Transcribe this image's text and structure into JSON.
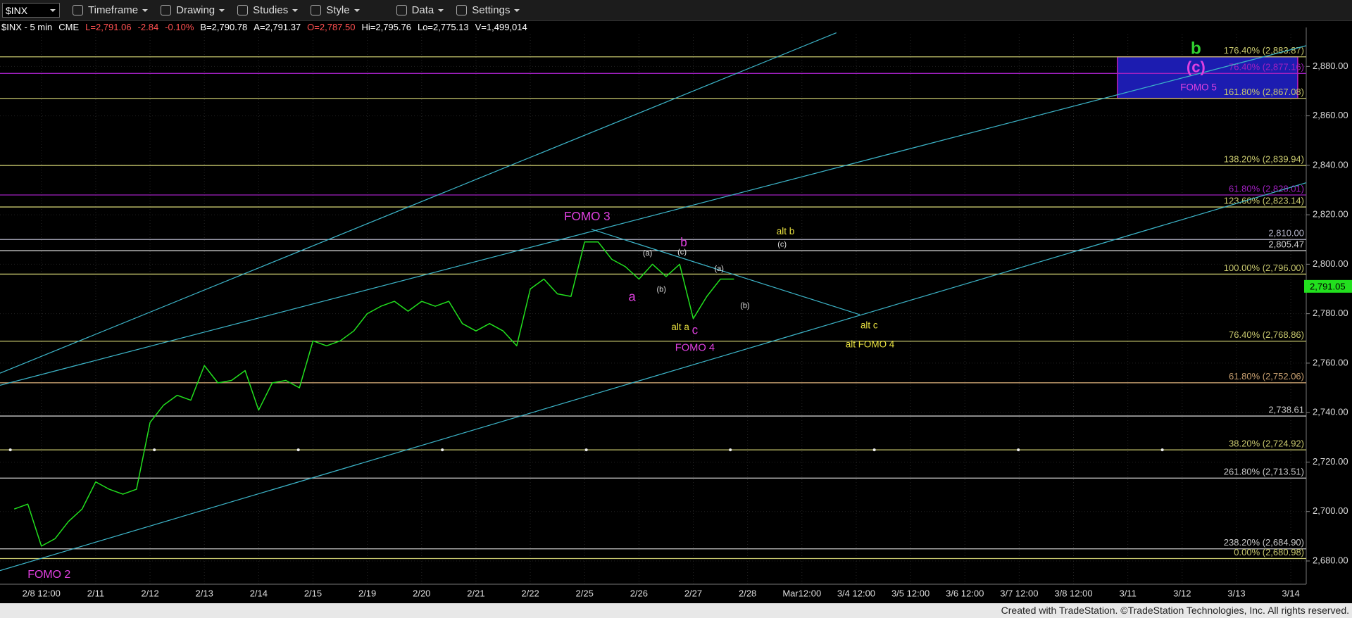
{
  "toolbar": {
    "symbol": "$INX",
    "menus": [
      "Timeframe",
      "Drawing",
      "Studies",
      "Style",
      "Data",
      "Settings"
    ]
  },
  "quote": {
    "symbol": "$INX - 5 min",
    "exchange": "CME",
    "last": "L=2,791.06",
    "change": "-2.84",
    "change_pct": "-0.10%",
    "bid": "B=2,790.78",
    "ask": "A=2,791.37",
    "open": "O=2,787.50",
    "high": "Hi=2,795.76",
    "low": "Lo=2,775.13",
    "volume": "V=1,499,014"
  },
  "chart_data": {
    "type": "line",
    "categories": [
      null,
      null,
      "2/8 12:00",
      null,
      null,
      null,
      "2/11",
      null,
      null,
      null,
      "2/12",
      null,
      null,
      null,
      "2/13",
      null,
      null,
      null,
      "2/14",
      null,
      null,
      null,
      "2/15",
      null,
      null,
      null,
      "2/19",
      null,
      null,
      null,
      "2/20",
      null,
      null,
      null,
      "2/21",
      null,
      null,
      null,
      "2/22",
      null,
      null,
      null,
      "2/25",
      null,
      null,
      null,
      "2/26",
      null,
      null,
      null,
      "2/27",
      null,
      null,
      null,
      "2/28",
      null,
      null,
      null,
      "Mar12:00",
      null,
      null,
      null,
      "3/4 12:00",
      null,
      null,
      null,
      "3/5 12:00",
      null,
      null,
      null,
      "3/6 12:00",
      null,
      null,
      null,
      "3/7 12:00",
      null,
      null,
      null,
      "3/8 12:00",
      null,
      null,
      null,
      "3/11",
      null,
      null,
      null,
      "3/12",
      null,
      null,
      null,
      "3/13",
      null,
      null,
      null,
      "3/14"
    ],
    "values": [
      2701,
      2703,
      2686,
      2689,
      2696,
      2701,
      2712,
      2709,
      2707,
      2709,
      2736,
      2743,
      2747,
      2745,
      2759,
      2752,
      2753,
      2757,
      2741,
      2752,
      2753,
      2750,
      2769,
      2767,
      2769,
      2773,
      2780,
      2783,
      2785,
      2781,
      2785,
      2783,
      2785,
      2776,
      2773,
      2776,
      2773,
      2767,
      2790,
      2794,
      2788,
      2787,
      2809,
      2809,
      2802,
      2799,
      2794,
      2800,
      2795,
      2800,
      2778,
      2787,
      2794,
      2794,
      null,
      null,
      null,
      null,
      null,
      null,
      null,
      null,
      null,
      null,
      null,
      null,
      null,
      null,
      null,
      null,
      null,
      null,
      null,
      null,
      null,
      null,
      null,
      null,
      null,
      null,
      null,
      null,
      null,
      null,
      null,
      null,
      null,
      null,
      null,
      null,
      null,
      null,
      null,
      null,
      null
    ],
    "color": "#22e01e",
    "ylim": [
      2670.6,
      2892.9
    ],
    "yticks": [
      {
        "value": 2680,
        "label": "2,680.00"
      },
      {
        "value": 2700,
        "label": "2,700.00"
      },
      {
        "value": 2720,
        "label": "2,720.00"
      },
      {
        "value": 2740,
        "label": "2,740.00"
      },
      {
        "value": 2760,
        "label": "2,760.00"
      },
      {
        "value": 2780,
        "label": "2,780.00"
      },
      {
        "value": 2800,
        "label": "2,800.00"
      },
      {
        "value": 2820,
        "label": "2,820.00"
      },
      {
        "value": 2840,
        "label": "2,840.00"
      },
      {
        "value": 2860,
        "label": "2,860.00"
      },
      {
        "value": 2880,
        "label": "2,880.00"
      }
    ],
    "levels": [
      {
        "value": 2883.87,
        "label": "176.40% (2,883.87)",
        "color": "#c8c86e"
      },
      {
        "value": 2877.16,
        "label": "76.40% (2,877.16)",
        "color": "#a020c0"
      },
      {
        "value": 2867.08,
        "label": "161.80% (2,867.08)",
        "color": "#c8c86e"
      },
      {
        "value": 2839.94,
        "label": "138.20% (2,839.94)",
        "color": "#c8c86e"
      },
      {
        "value": 2828.01,
        "label": "61.80% (2,828.01)",
        "color": "#a020c0"
      },
      {
        "value": 2823.14,
        "label": "123.60% (2,823.14)",
        "color": "#c8c86e"
      },
      {
        "value": 2810.0,
        "label": "2,810.00",
        "color": "#b4b4c8"
      },
      {
        "value": 2805.47,
        "label": "2,805.47",
        "color": "#d0d0d0"
      },
      {
        "value": 2796.0,
        "label": "100.00% (2,796.00)",
        "color": "#c8c86e"
      },
      {
        "value": 2768.86,
        "label": "76.40% (2,768.86)",
        "color": "#c8c86e"
      },
      {
        "value": 2752.06,
        "label": "61.80% (2,752.06)",
        "color": "#c8a070"
      },
      {
        "value": 2738.61,
        "label": "2,738.61",
        "color": "#c8c8c8"
      },
      {
        "value": 2724.92,
        "label": "38.20% (2,724.92)",
        "color": "#c8c86e"
      },
      {
        "value": 2713.51,
        "label": "261.80% (2,713.51)",
        "color": "#c8c8c8"
      },
      {
        "value": 2684.9,
        "label": "238.20% (2,684.90)",
        "color": "#c8c8c8"
      },
      {
        "value": 2680.98,
        "label": "0.00% (2,680.98)",
        "color": "#c8c86e"
      }
    ],
    "annotations": [
      {
        "text": "FOMO 2",
        "color": "#e040e0"
      },
      {
        "text": "FOMO 3",
        "color": "#e040e0"
      },
      {
        "text": "a",
        "color": "#e040e0"
      },
      {
        "text": "b",
        "color": "#e040e0"
      },
      {
        "text": "c",
        "color": "#e040e0"
      },
      {
        "text": "FOMO 4",
        "color": "#e040e0"
      },
      {
        "text": "(a)",
        "color": "#e0e0e0"
      },
      {
        "text": "(b)",
        "color": "#e0e0e0"
      },
      {
        "text": "(c)",
        "color": "#e0e0e0"
      },
      {
        "text": "(a)",
        "color": "#e0e0e0"
      },
      {
        "text": "(b)",
        "color": "#e0e0e0"
      },
      {
        "text": "(c)",
        "color": "#e0e0e0"
      },
      {
        "text": "alt b",
        "color": "#e8e040"
      },
      {
        "text": "alt a",
        "color": "#e8e040"
      },
      {
        "text": "alt c",
        "color": "#e8e040"
      },
      {
        "text": "alt FOMO 4",
        "color": "#e8e040"
      },
      {
        "text": "b",
        "color": "#30d030"
      },
      {
        "text": "(c)",
        "color": "#e040e0"
      },
      {
        "text": "FOMO 5",
        "color": "#e040e0"
      }
    ],
    "last_price": {
      "value": 2791.05,
      "label": "2,791.05"
    }
  },
  "footer": "Created with TradeStation. ©TradeStation Technologies, Inc. All rights reserved."
}
